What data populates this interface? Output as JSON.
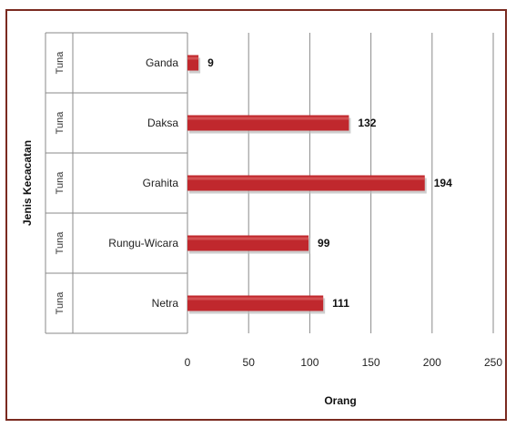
{
  "chart_data": {
    "type": "bar",
    "orientation": "horizontal",
    "categories": [
      {
        "group": "Tuna",
        "label": "Ganda",
        "value": 9
      },
      {
        "group": "Tuna",
        "label": "Daksa",
        "value": 132
      },
      {
        "group": "Tuna",
        "label": "Grahita",
        "value": 194
      },
      {
        "group": "Tuna",
        "label": "Rungu-Wicara",
        "value": 99
      },
      {
        "group": "Tuna",
        "label": "Netra",
        "value": 111
      }
    ],
    "values": [
      9,
      132,
      194,
      99,
      111
    ],
    "xlabel": "Orang",
    "ylabel": "Jenis Kecacatan",
    "xlim": [
      0,
      250
    ],
    "xticks": [
      0,
      50,
      100,
      150,
      200,
      250
    ],
    "grid": "vertical",
    "bar_color": "#c0282d",
    "frame_color": "#7a2a20"
  }
}
